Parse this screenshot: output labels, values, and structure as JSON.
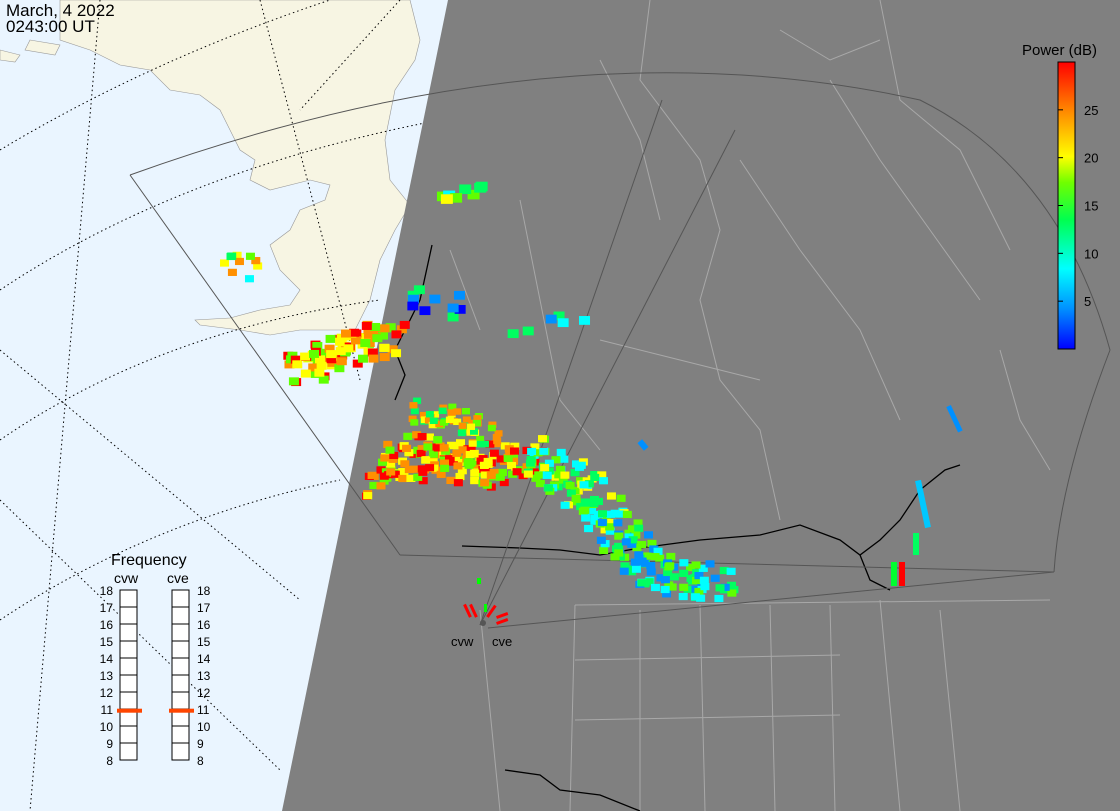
{
  "header": {
    "date": "March, 4 2022",
    "time": "0243:00 UT"
  },
  "colorbar": {
    "title": "Power (dB)",
    "ticks": [
      "25",
      "20",
      "15",
      "10",
      "5"
    ],
    "tick_values": [
      25,
      20,
      15,
      10,
      5
    ],
    "range": [
      0,
      30
    ],
    "colors": [
      "#0000ff",
      "#0090ff",
      "#00ffff",
      "#00ff60",
      "#60ff00",
      "#ffff00",
      "#ff9000",
      "#ff0000"
    ]
  },
  "radars": [
    {
      "name": "cvw"
    },
    {
      "name": "cve"
    }
  ],
  "frequency": {
    "title": "Frequency",
    "columns": [
      "cvw",
      "cve"
    ],
    "left_ticks": [
      "18",
      "17",
      "16",
      "15",
      "14",
      "13",
      "12",
      "11",
      "10",
      "9",
      "8"
    ],
    "right_ticks": [
      "18",
      "17",
      "16",
      "15",
      "14",
      "13",
      "12",
      "11",
      "10",
      "9",
      "8"
    ],
    "range": [
      8,
      18
    ],
    "cvw_mhz": 10.9,
    "cve_mhz": 10.9,
    "marker_color": "#ff4500"
  },
  "colors": {
    "ocean": "#eaf5ff",
    "land_day": "#f7f5e3",
    "night": "#808080",
    "boundary": "#a8a8a8",
    "country": "#000000",
    "fov_line": "#555555"
  }
}
